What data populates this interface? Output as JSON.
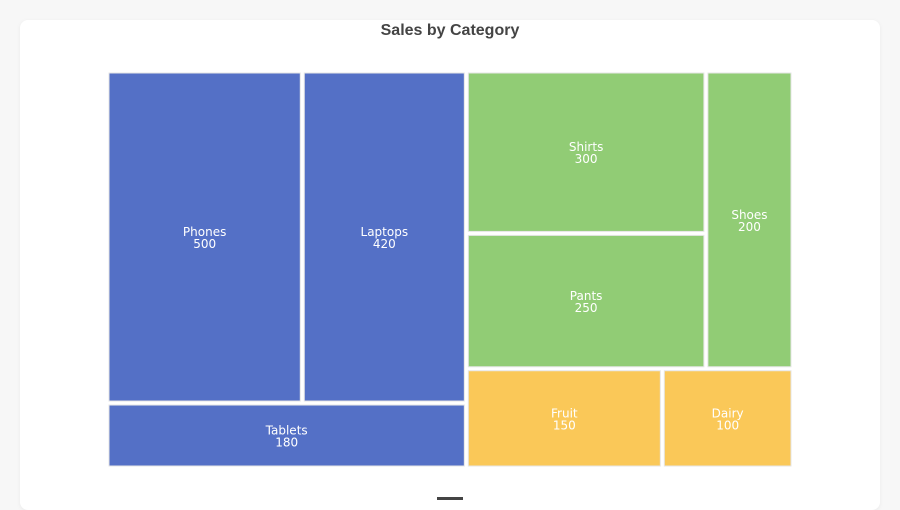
{
  "chart_data": {
    "type": "treemap",
    "title": "Sales by Category",
    "groups": [
      {
        "color": "#5470c6",
        "items": [
          {
            "name": "Phones",
            "value": 500
          },
          {
            "name": "Laptops",
            "value": 420
          },
          {
            "name": "Tablets",
            "value": 180
          }
        ]
      },
      {
        "color": "#91cc75",
        "items": [
          {
            "name": "Shirts",
            "value": 300
          },
          {
            "name": "Pants",
            "value": 250
          },
          {
            "name": "Shoes",
            "value": 200
          }
        ]
      },
      {
        "color": "#fac858",
        "items": [
          {
            "name": "Fruit",
            "value": 150
          },
          {
            "name": "Dairy",
            "value": 100
          }
        ]
      }
    ]
  }
}
